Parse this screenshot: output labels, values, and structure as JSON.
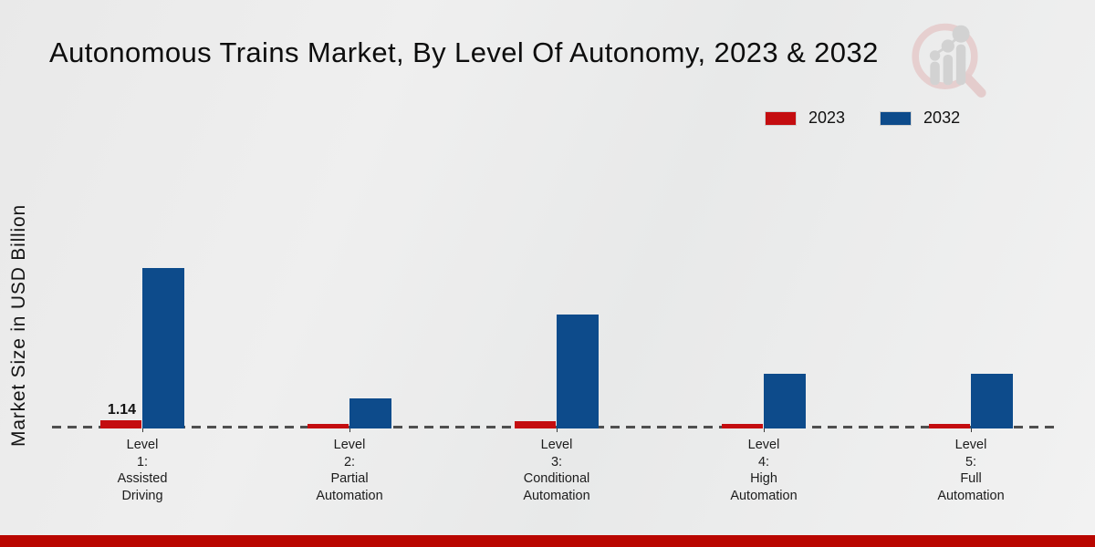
{
  "title": "Autonomous Trains Market, By Level Of Autonomy, 2023 & 2032",
  "y_axis_label": "Market Size in USD Billion",
  "legend": {
    "items": [
      {
        "label": "2023",
        "color": "#c40d10"
      },
      {
        "label": "2032",
        "color": "#0d4b8b"
      }
    ]
  },
  "chart_data": {
    "type": "bar",
    "title": "Autonomous Trains Market, By Level Of Autonomy, 2023 & 2032",
    "ylabel": "Market Size in USD Billion",
    "xlabel": "",
    "categories": [
      "Level\n1:\nAssisted\nDriving",
      "Level\n2:\nPartial\nAutomation",
      "Level\n3:\nConditional\nAutomation",
      "Level\n4:\nHigh\nAutomation",
      "Level\n5:\nFull\nAutomation"
    ],
    "series": [
      {
        "name": "2023",
        "color": "#c40d10",
        "values": [
          1.14,
          0.5,
          1.0,
          0.5,
          0.5
        ],
        "data_labels": [
          "1.14",
          "",
          "",
          "",
          ""
        ]
      },
      {
        "name": "2032",
        "color": "#0d4b8b",
        "values": [
          28.4,
          5.0,
          20.0,
          9.4,
          9.4
        ],
        "data_labels": [
          "",
          "",
          "",
          "",
          ""
        ]
      }
    ],
    "ylim": [
      0,
      30
    ],
    "units": "USD Billion",
    "grid": false,
    "legend_position": "top-right",
    "baseline_style": "dashed"
  },
  "branding": {
    "logo_icon": "magnifier-growth-chart-logo",
    "logo_circle_color": "#e6cfcf",
    "logo_bars_color": "#d2d2d2"
  },
  "footer": {
    "band_color": "#b90600"
  }
}
